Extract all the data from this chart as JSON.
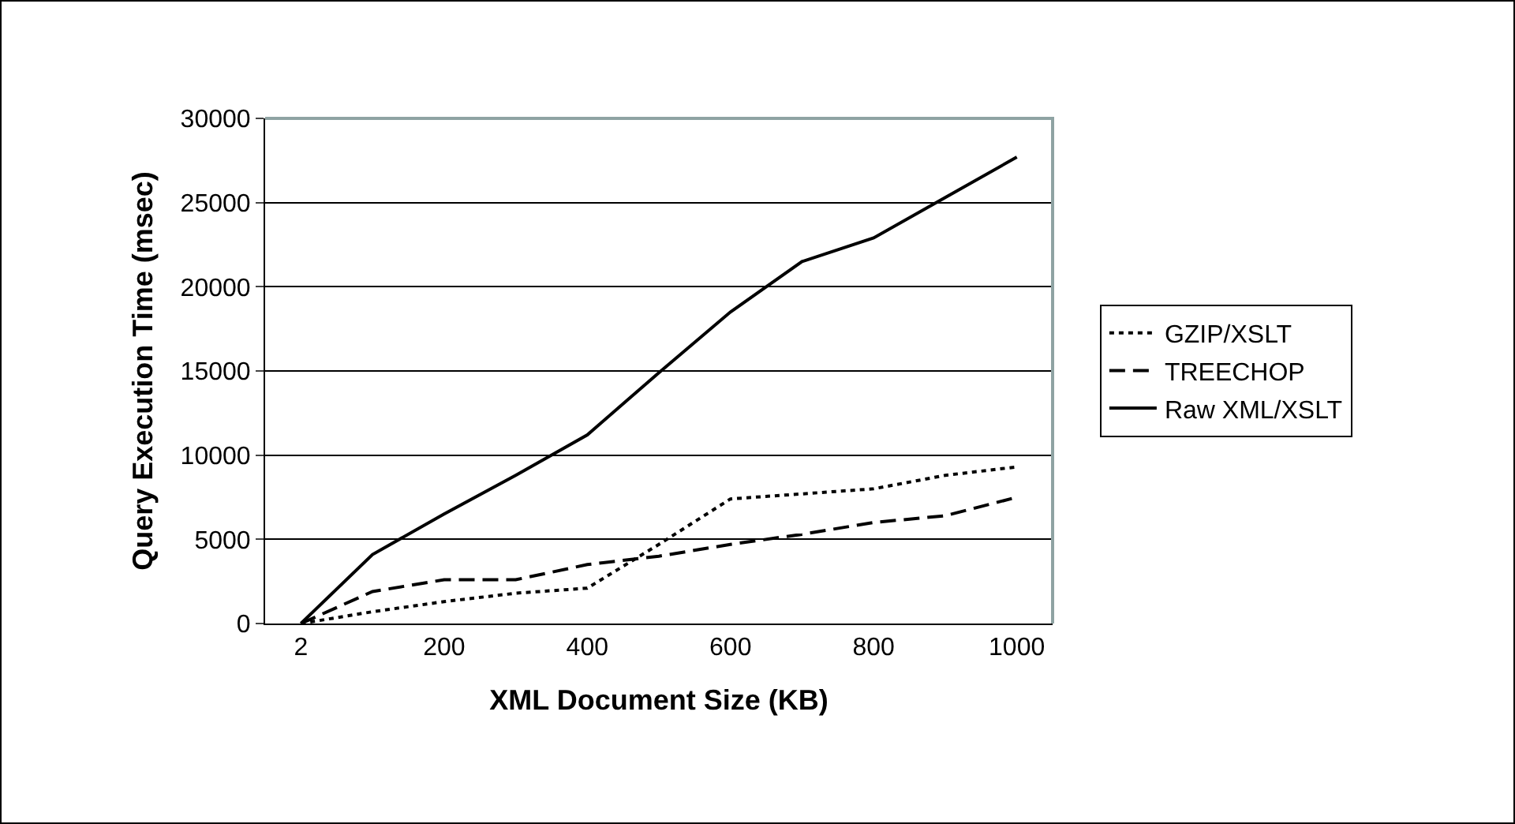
{
  "chart_data": {
    "type": "line",
    "xlabel": "XML Document Size (KB)",
    "ylabel": "Query Execution Time (msec)",
    "categories": [
      "2",
      null,
      "200",
      null,
      "400",
      null,
      "600",
      null,
      "800",
      null,
      "1000"
    ],
    "ylim": [
      0,
      30000
    ],
    "yticks": [
      0,
      5000,
      10000,
      15000,
      20000,
      25000,
      30000
    ],
    "grid": "y",
    "legend": "right",
    "marker": "none",
    "series": [
      {
        "name": "GZIP/XSLT",
        "color": "#000000",
        "line_style": "dotted",
        "values": [
          0,
          700,
          1300,
          1800,
          2100,
          4700,
          7400,
          7700,
          8000,
          8800,
          9300
        ]
      },
      {
        "name": "TREECHOP",
        "color": "#000000",
        "line_style": "dashed",
        "values": [
          0,
          1900,
          2600,
          2600,
          3500,
          4000,
          4700,
          5300,
          6000,
          6400,
          7500
        ]
      },
      {
        "name": "Raw XML/XSLT",
        "color": "#000000",
        "line_style": "solid",
        "values": [
          0,
          4100,
          6500,
          8800,
          11200,
          14900,
          18500,
          21500,
          22900,
          25300,
          27700
        ]
      }
    ]
  }
}
